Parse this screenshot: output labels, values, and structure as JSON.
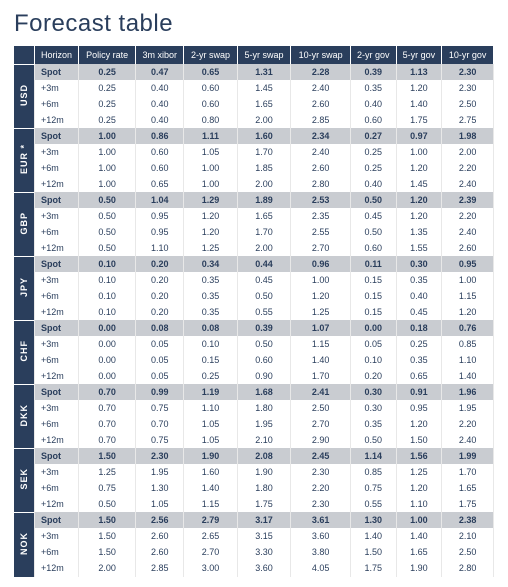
{
  "title": "Forecast table",
  "colors": {
    "header_bg": "#2a3e5c",
    "spot_bg": "#c9ccd1",
    "row_bg": "#ffffff",
    "text": "#2a3e5c",
    "title": "#2a3e5c"
  },
  "columns": [
    "Horizon",
    "Policy rate",
    "3m xibor",
    "2-yr swap",
    "5-yr swap",
    "10-yr swap",
    "2-yr gov",
    "5-yr gov",
    "10-yr gov"
  ],
  "blocks": [
    {
      "ccy": "USD",
      "rows": [
        {
          "h": "Spot",
          "v": [
            "0.25",
            "0.47",
            "0.65",
            "1.31",
            "2.28",
            "0.39",
            "1.13",
            "2.30"
          ]
        },
        {
          "h": "+3m",
          "v": [
            "0.25",
            "0.40",
            "0.60",
            "1.45",
            "2.40",
            "0.35",
            "1.20",
            "2.30"
          ]
        },
        {
          "h": "+6m",
          "v": [
            "0.25",
            "0.40",
            "0.60",
            "1.65",
            "2.60",
            "0.40",
            "1.40",
            "2.50"
          ]
        },
        {
          "h": "+12m",
          "v": [
            "0.25",
            "0.40",
            "0.80",
            "2.00",
            "2.85",
            "0.60",
            "1.75",
            "2.75"
          ]
        }
      ]
    },
    {
      "ccy": "EUR *",
      "rows": [
        {
          "h": "Spot",
          "v": [
            "1.00",
            "0.86",
            "1.11",
            "1.60",
            "2.34",
            "0.27",
            "0.97",
            "1.98"
          ]
        },
        {
          "h": "+3m",
          "v": [
            "1.00",
            "0.60",
            "1.05",
            "1.70",
            "2.40",
            "0.25",
            "1.00",
            "2.00"
          ]
        },
        {
          "h": "+6m",
          "v": [
            "1.00",
            "0.60",
            "1.00",
            "1.85",
            "2.60",
            "0.25",
            "1.20",
            "2.20"
          ]
        },
        {
          "h": "+12m",
          "v": [
            "1.00",
            "0.65",
            "1.00",
            "2.00",
            "2.80",
            "0.40",
            "1.45",
            "2.40"
          ]
        }
      ]
    },
    {
      "ccy": "GBP",
      "rows": [
        {
          "h": "Spot",
          "v": [
            "0.50",
            "1.04",
            "1.29",
            "1.89",
            "2.53",
            "0.50",
            "1.20",
            "2.39"
          ]
        },
        {
          "h": "+3m",
          "v": [
            "0.50",
            "0.95",
            "1.20",
            "1.65",
            "2.35",
            "0.45",
            "1.20",
            "2.20"
          ]
        },
        {
          "h": "+6m",
          "v": [
            "0.50",
            "0.95",
            "1.20",
            "1.70",
            "2.55",
            "0.50",
            "1.35",
            "2.40"
          ]
        },
        {
          "h": "+12m",
          "v": [
            "0.50",
            "1.10",
            "1.25",
            "2.00",
            "2.70",
            "0.60",
            "1.55",
            "2.60"
          ]
        }
      ]
    },
    {
      "ccy": "JPY",
      "rows": [
        {
          "h": "Spot",
          "v": [
            "0.10",
            "0.20",
            "0.34",
            "0.44",
            "0.96",
            "0.11",
            "0.30",
            "0.95"
          ]
        },
        {
          "h": "+3m",
          "v": [
            "0.10",
            "0.20",
            "0.35",
            "0.45",
            "1.00",
            "0.15",
            "0.35",
            "1.00"
          ]
        },
        {
          "h": "+6m",
          "v": [
            "0.10",
            "0.20",
            "0.35",
            "0.50",
            "1.20",
            "0.15",
            "0.40",
            "1.15"
          ]
        },
        {
          "h": "+12m",
          "v": [
            "0.10",
            "0.20",
            "0.35",
            "0.55",
            "1.25",
            "0.15",
            "0.45",
            "1.20"
          ]
        }
      ]
    },
    {
      "ccy": "CHF",
      "rows": [
        {
          "h": "Spot",
          "v": [
            "0.00",
            "0.08",
            "0.08",
            "0.39",
            "1.07",
            "0.00",
            "0.18",
            "0.76"
          ]
        },
        {
          "h": "+3m",
          "v": [
            "0.00",
            "0.05",
            "0.10",
            "0.50",
            "1.15",
            "0.05",
            "0.25",
            "0.85"
          ]
        },
        {
          "h": "+6m",
          "v": [
            "0.00",
            "0.05",
            "0.15",
            "0.60",
            "1.40",
            "0.10",
            "0.35",
            "1.10"
          ]
        },
        {
          "h": "+12m",
          "v": [
            "0.00",
            "0.05",
            "0.25",
            "0.90",
            "1.70",
            "0.20",
            "0.65",
            "1.40"
          ]
        }
      ]
    },
    {
      "ccy": "DKK",
      "rows": [
        {
          "h": "Spot",
          "v": [
            "0.70",
            "0.99",
            "1.19",
            "1.68",
            "2.41",
            "0.30",
            "0.91",
            "1.96"
          ]
        },
        {
          "h": "+3m",
          "v": [
            "0.70",
            "0.75",
            "1.10",
            "1.80",
            "2.50",
            "0.30",
            "0.95",
            "1.95"
          ]
        },
        {
          "h": "+6m",
          "v": [
            "0.70",
            "0.70",
            "1.05",
            "1.95",
            "2.70",
            "0.35",
            "1.20",
            "2.20"
          ]
        },
        {
          "h": "+12m",
          "v": [
            "0.70",
            "0.75",
            "1.05",
            "2.10",
            "2.90",
            "0.50",
            "1.50",
            "2.40"
          ]
        }
      ]
    },
    {
      "ccy": "SEK",
      "rows": [
        {
          "h": "Spot",
          "v": [
            "1.50",
            "2.30",
            "1.90",
            "2.08",
            "2.45",
            "1.14",
            "1.56",
            "1.99"
          ]
        },
        {
          "h": "+3m",
          "v": [
            "1.25",
            "1.95",
            "1.60",
            "1.90",
            "2.30",
            "0.85",
            "1.25",
            "1.70"
          ]
        },
        {
          "h": "+6m",
          "v": [
            "0.75",
            "1.30",
            "1.40",
            "1.80",
            "2.20",
            "0.75",
            "1.20",
            "1.65"
          ]
        },
        {
          "h": "+12m",
          "v": [
            "0.50",
            "1.05",
            "1.15",
            "1.75",
            "2.30",
            "0.55",
            "1.10",
            "1.75"
          ]
        }
      ]
    },
    {
      "ccy": "NOK",
      "rows": [
        {
          "h": "Spot",
          "v": [
            "1.50",
            "2.56",
            "2.79",
            "3.17",
            "3.61",
            "1.30",
            "1.00",
            "2.38"
          ]
        },
        {
          "h": "+3m",
          "v": [
            "1.50",
            "2.60",
            "2.65",
            "3.15",
            "3.60",
            "1.40",
            "1.40",
            "2.10"
          ]
        },
        {
          "h": "+6m",
          "v": [
            "1.50",
            "2.60",
            "2.70",
            "3.30",
            "3.80",
            "1.50",
            "1.65",
            "2.50"
          ]
        },
        {
          "h": "+12m",
          "v": [
            "2.00",
            "2.85",
            "3.00",
            "3.60",
            "4.05",
            "1.75",
            "1.90",
            "2.80"
          ]
        }
      ]
    }
  ]
}
